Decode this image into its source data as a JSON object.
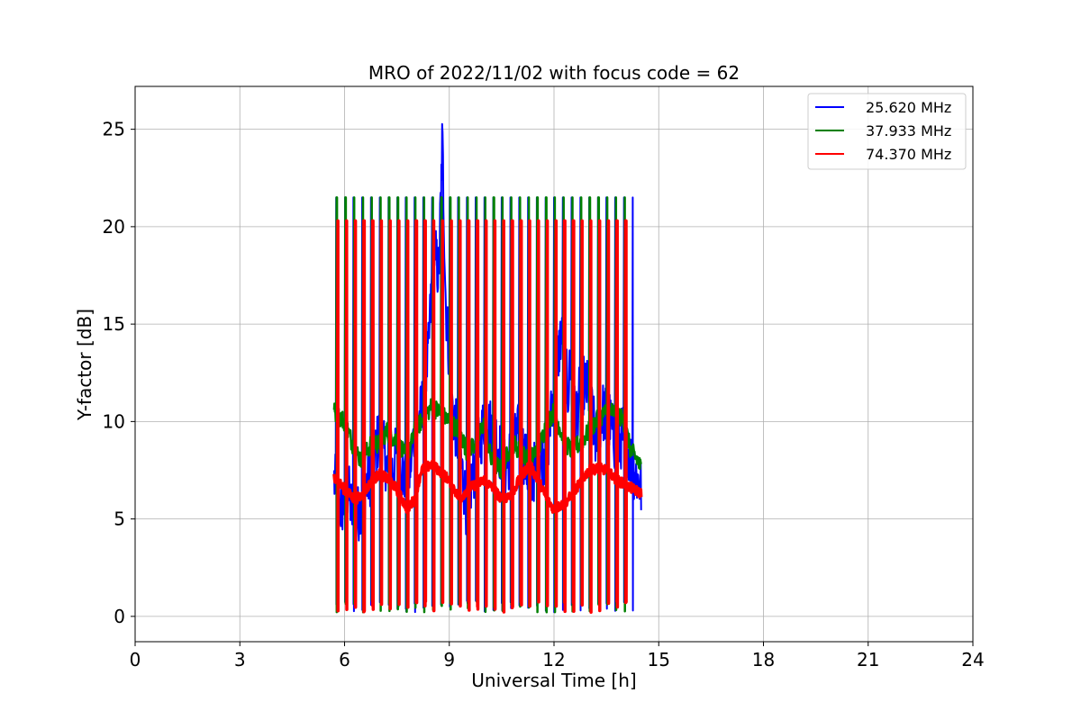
{
  "chart_data": {
    "type": "line",
    "title": "MRO of 2022/11/02 with focus code = 62",
    "xlabel": "Universal Time [h]",
    "ylabel": "Y-factor [dB]",
    "xlim": [
      0,
      24
    ],
    "ylim": [
      -1.3,
      27.2
    ],
    "xticks": [
      0,
      3,
      6,
      9,
      12,
      15,
      18,
      21,
      24
    ],
    "yticks": [
      0,
      5,
      10,
      15,
      20,
      25
    ],
    "grid": true,
    "legend_position": "top-right",
    "calibration": {
      "start_h": 5.75,
      "end_h": 14.25,
      "period_h": 0.25,
      "peak_values": {
        "blue": 21.5,
        "green": 21.5,
        "red": 20.3
      },
      "trough_value": 0.2
    },
    "series": [
      {
        "name": "25.620 MHz",
        "color": "#0000ff",
        "x": [
          5.7,
          5.9,
          6.1,
          6.3,
          6.5,
          6.8,
          7.0,
          7.3,
          7.5,
          7.8,
          8.0,
          8.2,
          8.4,
          8.55,
          8.7,
          8.8,
          8.9,
          9.1,
          9.3,
          9.5,
          9.7,
          10.0,
          10.3,
          10.6,
          10.8,
          11.0,
          11.3,
          11.6,
          11.8,
          12.0,
          12.2,
          12.4,
          12.5,
          12.6,
          12.8,
          13.0,
          13.2,
          13.4,
          13.6,
          13.8,
          14.0,
          14.2,
          14.4,
          14.5
        ],
        "y": [
          7.0,
          5.5,
          6.5,
          4.5,
          6.2,
          7.5,
          9.5,
          7.0,
          8.5,
          6.5,
          9.5,
          10.5,
          13.5,
          19.0,
          17.5,
          24.5,
          16.0,
          10.5,
          8.5,
          5.5,
          7.5,
          10.0,
          9.5,
          7.5,
          8.5,
          9.5,
          7.0,
          8.0,
          8.5,
          11.5,
          14.5,
          11.5,
          13.5,
          10.0,
          12.0,
          11.5,
          9.0,
          10.5,
          10.0,
          8.5,
          9.5,
          8.0,
          7.0,
          6.5
        ]
      },
      {
        "name": "37.933 MHz",
        "color": "#008000",
        "x": [
          5.7,
          6.0,
          6.3,
          6.5,
          6.8,
          7.0,
          7.2,
          7.5,
          7.8,
          8.0,
          8.2,
          8.5,
          8.7,
          9.0,
          9.3,
          9.5,
          9.8,
          10.0,
          10.2,
          10.5,
          10.8,
          11.0,
          11.3,
          11.6,
          11.8,
          12.0,
          12.3,
          12.5,
          12.8,
          13.0,
          13.2,
          13.5,
          13.8,
          14.0,
          14.2,
          14.4,
          14.5
        ],
        "y": [
          10.5,
          10.0,
          8.5,
          8.0,
          9.0,
          8.8,
          9.5,
          9.0,
          8.0,
          9.5,
          10.0,
          10.8,
          10.5,
          10.0,
          9.5,
          8.5,
          9.0,
          10.0,
          8.0,
          7.5,
          9.0,
          8.5,
          8.0,
          8.8,
          10.0,
          10.5,
          9.0,
          8.5,
          9.0,
          9.5,
          10.0,
          10.5,
          10.5,
          10.0,
          8.5,
          8.0,
          7.5
        ]
      },
      {
        "name": "74.370 MHz",
        "color": "#ff0000",
        "x": [
          5.7,
          6.0,
          6.3,
          6.5,
          6.8,
          7.0,
          7.3,
          7.5,
          7.8,
          8.0,
          8.2,
          8.5,
          8.7,
          9.0,
          9.3,
          9.5,
          9.8,
          10.0,
          10.3,
          10.5,
          10.8,
          11.0,
          11.3,
          11.6,
          11.8,
          12.0,
          12.3,
          12.5,
          12.8,
          13.0,
          13.3,
          13.5,
          13.8,
          14.0,
          14.3,
          14.5
        ],
        "y": [
          7.2,
          6.5,
          6.0,
          6.2,
          7.0,
          7.3,
          7.0,
          6.5,
          5.5,
          6.0,
          7.5,
          7.8,
          7.5,
          7.0,
          6.0,
          6.5,
          6.8,
          7.0,
          6.5,
          6.0,
          6.3,
          7.0,
          7.8,
          6.8,
          6.0,
          5.5,
          5.8,
          6.2,
          7.0,
          7.5,
          7.6,
          7.5,
          7.0,
          6.8,
          6.5,
          6.3
        ]
      }
    ]
  }
}
